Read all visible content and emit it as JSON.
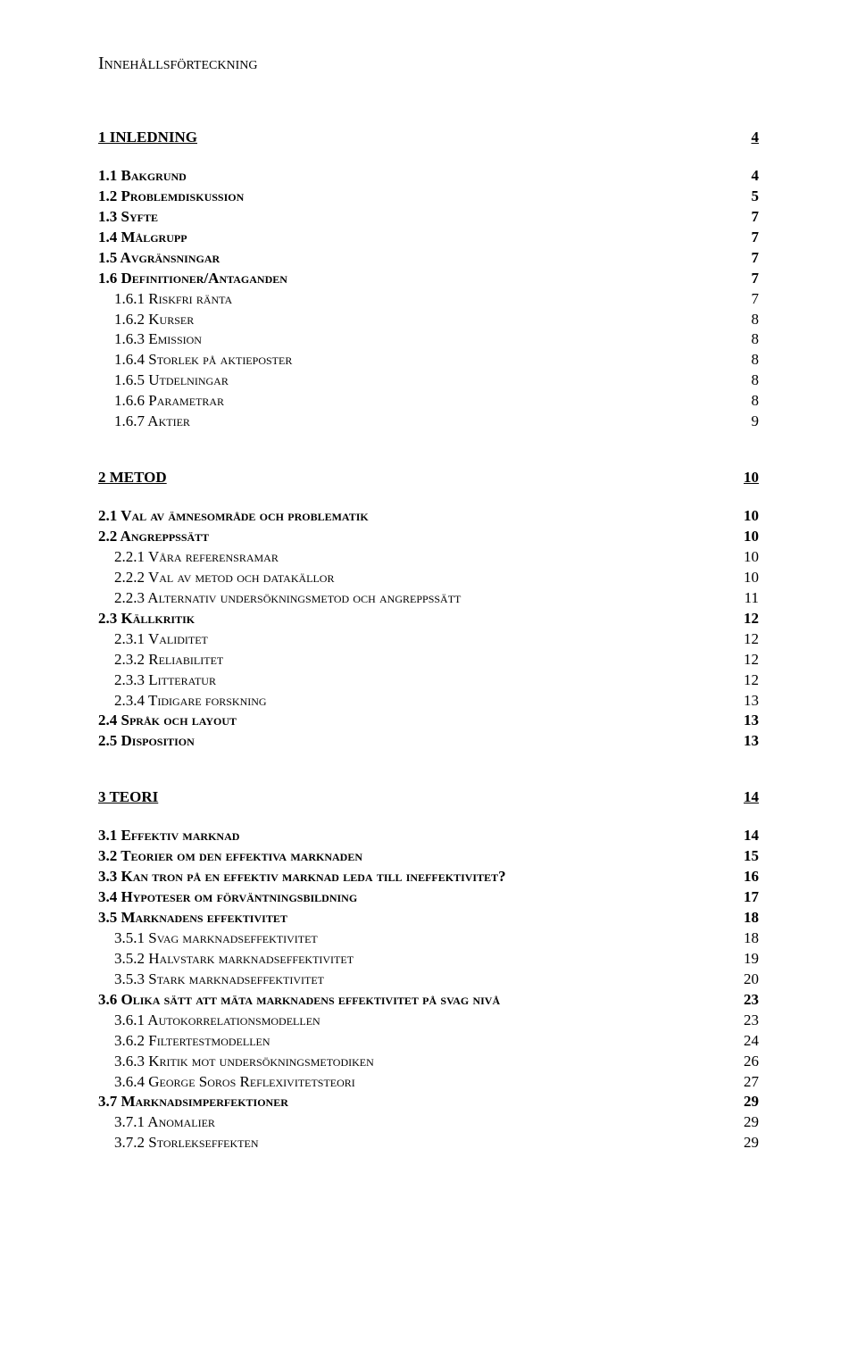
{
  "title": "Innehållsförteckning",
  "entries": [
    {
      "label": "1 INLEDNING",
      "page": "4",
      "class": "section-title",
      "indent": 0,
      "gapBefore": ""
    },
    {
      "label": "1.1 Bakgrund",
      "page": "4",
      "class": "subhead smallcaps",
      "indent": 0,
      "gapBefore": "gap-med"
    },
    {
      "label": "1.2 Problemdiskussion",
      "page": "5",
      "class": "subhead smallcaps",
      "indent": 0,
      "gapBefore": ""
    },
    {
      "label": "1.3 Syfte",
      "page": "7",
      "class": "subhead smallcaps",
      "indent": 0,
      "gapBefore": ""
    },
    {
      "label": "1.4 Målgrupp",
      "page": "7",
      "class": "subhead smallcaps",
      "indent": 0,
      "gapBefore": ""
    },
    {
      "label": "1.5 Avgränsningar",
      "page": "7",
      "class": "subhead smallcaps",
      "indent": 0,
      "gapBefore": ""
    },
    {
      "label": "1.6 Definitioner/Antaganden",
      "page": "7",
      "class": "subhead smallcaps",
      "indent": 0,
      "gapBefore": ""
    },
    {
      "label": "1.6.1 Riskfri ränta",
      "page": "7",
      "class": "smallcaps",
      "indent": 1,
      "gapBefore": ""
    },
    {
      "label": "1.6.2 Kurser",
      "page": "8",
      "class": "smallcaps",
      "indent": 1,
      "gapBefore": ""
    },
    {
      "label": "1.6.3 Emission",
      "page": "8",
      "class": "smallcaps",
      "indent": 1,
      "gapBefore": ""
    },
    {
      "label": "1.6.4 Storlek på aktieposter",
      "page": "8",
      "class": "smallcaps",
      "indent": 1,
      "gapBefore": ""
    },
    {
      "label": "1.6.5 Utdelningar",
      "page": "8",
      "class": "smallcaps",
      "indent": 1,
      "gapBefore": ""
    },
    {
      "label": "1.6.6 Parametrar",
      "page": "8",
      "class": "smallcaps",
      "indent": 1,
      "gapBefore": ""
    },
    {
      "label": "1.6.7 Aktier",
      "page": "9",
      "class": "smallcaps",
      "indent": 1,
      "gapBefore": ""
    },
    {
      "label": "2 METOD",
      "page": "10",
      "class": "section-title",
      "indent": 0,
      "gapBefore": "gap-big"
    },
    {
      "label": "2.1 Val av ämnesområde och problematik",
      "page": "10",
      "class": "subhead smallcaps",
      "indent": 0,
      "gapBefore": "gap-med"
    },
    {
      "label": "2.2 Angreppssätt",
      "page": "10",
      "class": "subhead smallcaps",
      "indent": 0,
      "gapBefore": ""
    },
    {
      "label": "2.2.1 Våra referensramar",
      "page": "10",
      "class": "smallcaps",
      "indent": 1,
      "gapBefore": ""
    },
    {
      "label": "2.2.2 Val av metod och datakällor",
      "page": "10",
      "class": "smallcaps",
      "indent": 1,
      "gapBefore": ""
    },
    {
      "label": "2.2.3 Alternativ undersökningsmetod och angreppssätt",
      "page": "11",
      "class": "smallcaps",
      "indent": 1,
      "gapBefore": ""
    },
    {
      "label": "2.3 Källkritik",
      "page": "12",
      "class": "subhead smallcaps",
      "indent": 0,
      "gapBefore": ""
    },
    {
      "label": "2.3.1 Validitet",
      "page": "12",
      "class": "smallcaps",
      "indent": 1,
      "gapBefore": ""
    },
    {
      "label": "2.3.2 Reliabilitet",
      "page": "12",
      "class": "smallcaps",
      "indent": 1,
      "gapBefore": ""
    },
    {
      "label": "2.3.3 Litteratur",
      "page": "12",
      "class": "smallcaps",
      "indent": 1,
      "gapBefore": ""
    },
    {
      "label": "2.3.4 Tidigare forskning",
      "page": "13",
      "class": "smallcaps",
      "indent": 1,
      "gapBefore": ""
    },
    {
      "label": "2.4 Språk och layout",
      "page": "13",
      "class": "subhead smallcaps",
      "indent": 0,
      "gapBefore": ""
    },
    {
      "label": "2.5 Disposition",
      "page": "13",
      "class": "subhead smallcaps",
      "indent": 0,
      "gapBefore": ""
    },
    {
      "label": "3 TEORI",
      "page": "14",
      "class": "section-title",
      "indent": 0,
      "gapBefore": "gap-big"
    },
    {
      "label": "3.1 Effektiv marknad",
      "page": "14",
      "class": "subhead smallcaps",
      "indent": 0,
      "gapBefore": "gap-med"
    },
    {
      "label": "3.2 Teorier om den effektiva marknaden",
      "page": "15",
      "class": "subhead smallcaps",
      "indent": 0,
      "gapBefore": ""
    },
    {
      "label": "3.3 Kan tron på en effektiv marknad leda till ineffektivitet?",
      "page": "16",
      "class": "subhead smallcaps",
      "indent": 0,
      "gapBefore": ""
    },
    {
      "label": "3.4 Hypoteser om förväntningsbildning",
      "page": "17",
      "class": "subhead smallcaps",
      "indent": 0,
      "gapBefore": ""
    },
    {
      "label": "3.5 Marknadens effektivitet",
      "page": "18",
      "class": "subhead smallcaps",
      "indent": 0,
      "gapBefore": ""
    },
    {
      "label": "3.5.1 Svag marknadseffektivitet",
      "page": "18",
      "class": "smallcaps",
      "indent": 1,
      "gapBefore": ""
    },
    {
      "label": "3.5.2 Halvstark marknadseffektivitet",
      "page": "19",
      "class": "smallcaps",
      "indent": 1,
      "gapBefore": ""
    },
    {
      "label": "3.5.3 Stark marknadseffektivitet",
      "page": "20",
      "class": "smallcaps",
      "indent": 1,
      "gapBefore": ""
    },
    {
      "label": "3.6 Olika sätt att mäta marknadens effektivitet på svag nivå",
      "page": "23",
      "class": "subhead smallcaps",
      "indent": 0,
      "gapBefore": ""
    },
    {
      "label": "3.6.1 Autokorrelationsmodellen",
      "page": "23",
      "class": "smallcaps",
      "indent": 1,
      "gapBefore": ""
    },
    {
      "label": "3.6.2 Filtertestmodellen",
      "page": "24",
      "class": "smallcaps",
      "indent": 1,
      "gapBefore": ""
    },
    {
      "label": "3.6.3 Kritik mot undersökningsmetodiken",
      "page": "26",
      "class": "smallcaps",
      "indent": 1,
      "gapBefore": ""
    },
    {
      "label": "3.6.4 George Soros Reflexivitetsteori",
      "page": "27",
      "class": "smallcaps",
      "indent": 1,
      "gapBefore": ""
    },
    {
      "label": "3.7 Marknadsimperfektioner",
      "page": "29",
      "class": "subhead smallcaps",
      "indent": 0,
      "gapBefore": ""
    },
    {
      "label": "3.7.1 Anomalier",
      "page": "29",
      "class": "smallcaps",
      "indent": 1,
      "gapBefore": ""
    },
    {
      "label": "3.7.2 Storlekseffekten",
      "page": "29",
      "class": "smallcaps",
      "indent": 1,
      "gapBefore": ""
    }
  ]
}
